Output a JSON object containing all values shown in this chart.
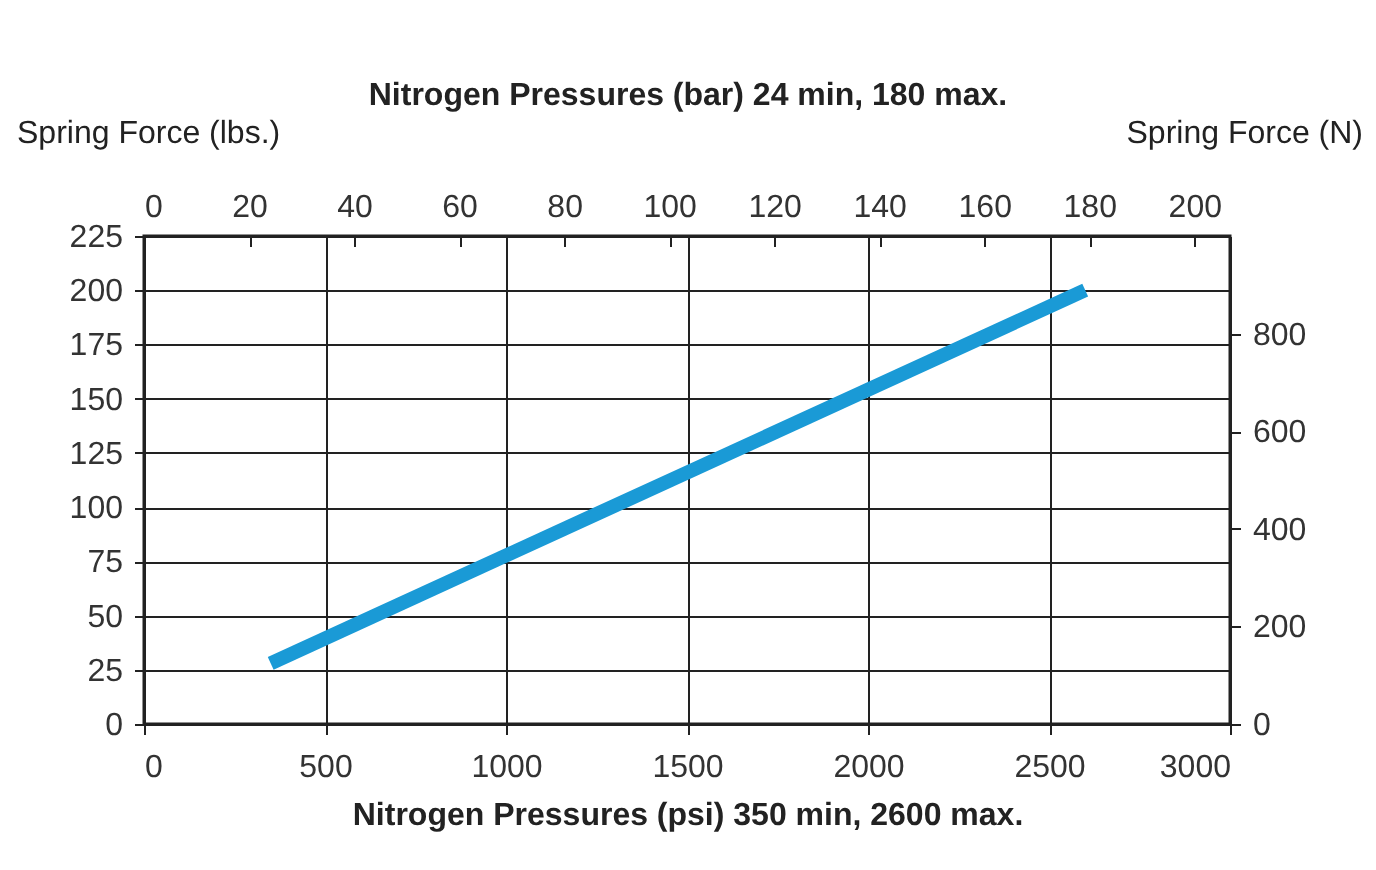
{
  "chart_data": {
    "type": "line",
    "xlabel": "Nitrogen Pressures (psi) 350 min, 2600 max.",
    "x2label": "Nitrogen Pressures (bar) 24 min, 180 max.",
    "ylabel": "Spring Force (lbs.)",
    "y2label": "Spring Force (N)",
    "x": [
      350,
      2600
    ],
    "series": [
      {
        "color": "#1a9ad6",
        "values": [
          28,
          200
        ]
      }
    ],
    "xlim": [
      0,
      3000
    ],
    "xticks": [
      0,
      500,
      1000,
      1500,
      2000,
      2500,
      3000
    ],
    "x2lim": [
      0,
      206.8
    ],
    "x2ticks": [
      0,
      20,
      40,
      60,
      80,
      100,
      120,
      140,
      160,
      180,
      200
    ],
    "ylim": [
      0,
      225
    ],
    "yticks": [
      0,
      25,
      50,
      75,
      100,
      125,
      150,
      175,
      200,
      225
    ],
    "y2lim": [
      0,
      1000.8
    ],
    "y2ticks": [
      0,
      200,
      400,
      600,
      800
    ],
    "grid": true,
    "line_style": "solid"
  }
}
